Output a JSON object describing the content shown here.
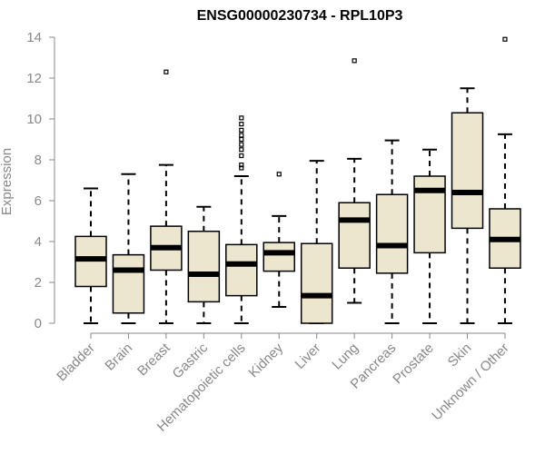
{
  "chart_data": {
    "type": "boxplot",
    "title": "ENSG00000230734 - RPL10P3",
    "xlabel": "",
    "ylabel": "Expression",
    "ylim": [
      0,
      14
    ],
    "yticks": [
      "0",
      "2",
      "4",
      "6",
      "8",
      "10",
      "12",
      "14"
    ],
    "grid": false,
    "box_fill": "#ede6cf",
    "line_color": "#000000",
    "axis_text_color": "#888888",
    "categories": [
      "Bladder",
      "Brain",
      "Breast",
      "Gastric",
      "Hematopoietic cells",
      "Kidney",
      "Liver",
      "Lung",
      "Pancreas",
      "Prostate",
      "Skin",
      "Unknown / Other"
    ],
    "boxes": [
      {
        "whisker_low": 0.0,
        "q1": 1.8,
        "median": 3.15,
        "q3": 4.25,
        "whisker_high": 6.6,
        "outliers": []
      },
      {
        "whisker_low": 0.0,
        "q1": 0.5,
        "median": 2.6,
        "q3": 3.35,
        "whisker_high": 7.3,
        "outliers": []
      },
      {
        "whisker_low": 0.0,
        "q1": 2.6,
        "median": 3.7,
        "q3": 4.75,
        "whisker_high": 7.75,
        "outliers": [
          12.3
        ]
      },
      {
        "whisker_low": 0.0,
        "q1": 1.05,
        "median": 2.4,
        "q3": 4.5,
        "whisker_high": 5.7,
        "outliers": []
      },
      {
        "whisker_low": 0.0,
        "q1": 1.35,
        "median": 2.9,
        "q3": 3.85,
        "whisker_high": 7.2,
        "outliers": [
          7.6,
          7.75,
          8.2,
          8.5,
          8.75,
          9.0,
          9.2,
          9.45,
          9.75,
          10.05
        ]
      },
      {
        "whisker_low": 0.8,
        "q1": 2.55,
        "median": 3.45,
        "q3": 3.95,
        "whisker_high": 5.25,
        "outliers": [
          7.3
        ]
      },
      {
        "whisker_low": 0.0,
        "q1": 0.0,
        "median": 1.35,
        "q3": 3.9,
        "whisker_high": 7.95,
        "outliers": []
      },
      {
        "whisker_low": 1.0,
        "q1": 2.7,
        "median": 5.05,
        "q3": 5.9,
        "whisker_high": 8.05,
        "outliers": [
          12.85
        ]
      },
      {
        "whisker_low": 0.0,
        "q1": 2.45,
        "median": 3.8,
        "q3": 6.3,
        "whisker_high": 8.95,
        "outliers": []
      },
      {
        "whisker_low": 0.0,
        "q1": 3.45,
        "median": 6.5,
        "q3": 7.2,
        "whisker_high": 8.5,
        "outliers": []
      },
      {
        "whisker_low": 0.0,
        "q1": 4.65,
        "median": 6.4,
        "q3": 10.3,
        "whisker_high": 11.5,
        "outliers": []
      },
      {
        "whisker_low": 0.0,
        "q1": 2.7,
        "median": 4.1,
        "q3": 5.6,
        "whisker_high": 9.25,
        "outliers": [
          13.9
        ]
      }
    ]
  }
}
